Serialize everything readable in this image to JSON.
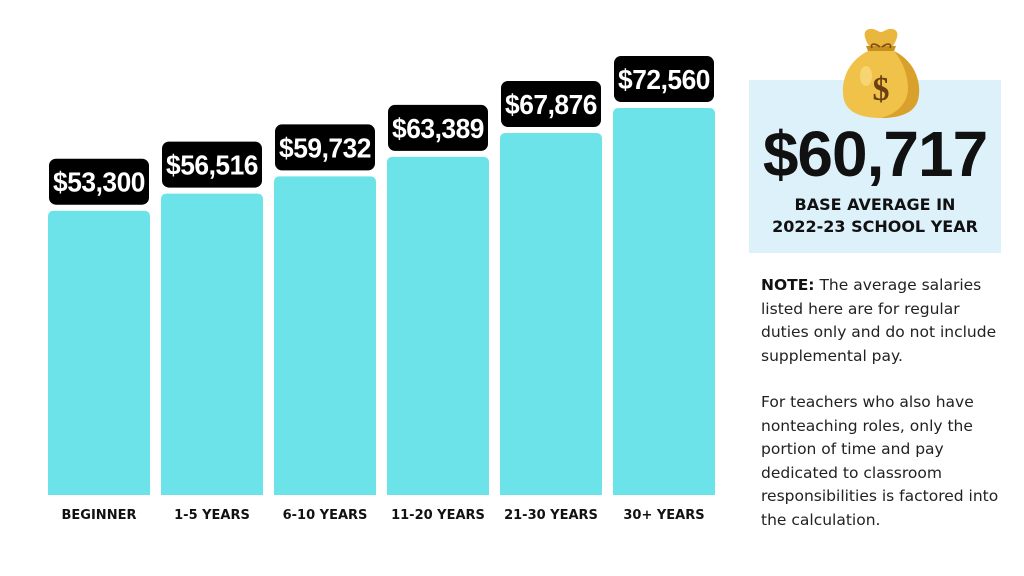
{
  "chart_data": {
    "type": "bar",
    "categories": [
      "BEGINNER",
      "1-5 YEARS",
      "6-10 YEARS",
      "11-20 YEARS",
      "21-30 YEARS",
      "30+ YEARS"
    ],
    "values": [
      53300,
      56516,
      59732,
      63389,
      67876,
      72560
    ],
    "value_labels": [
      "$53,300",
      "$56,516",
      "$59,732",
      "$63,389",
      "$67,876",
      "$72,560"
    ],
    "title": "",
    "xlabel": "",
    "ylabel": "",
    "ylim": [
      0,
      90000
    ],
    "grid": false,
    "legend": "none",
    "bar_color": "#6be3e8",
    "label_badge_color": "#000000"
  },
  "summary": {
    "average_value": "$60,717",
    "caption_line1": "BASE AVERAGE IN",
    "caption_line2": "2022-23 SCHOOL YEAR",
    "icon": "money-bag-icon",
    "box_color": "#ddf1fb"
  },
  "note": {
    "label": "NOTE:",
    "text": " The average salaries listed here are for regular duties only and do not include supplemental pay.",
    "paragraph2": "For teachers who also have nonteaching roles, only the portion of time and pay dedicated to classroom responsibilities is factored into the calculation."
  }
}
